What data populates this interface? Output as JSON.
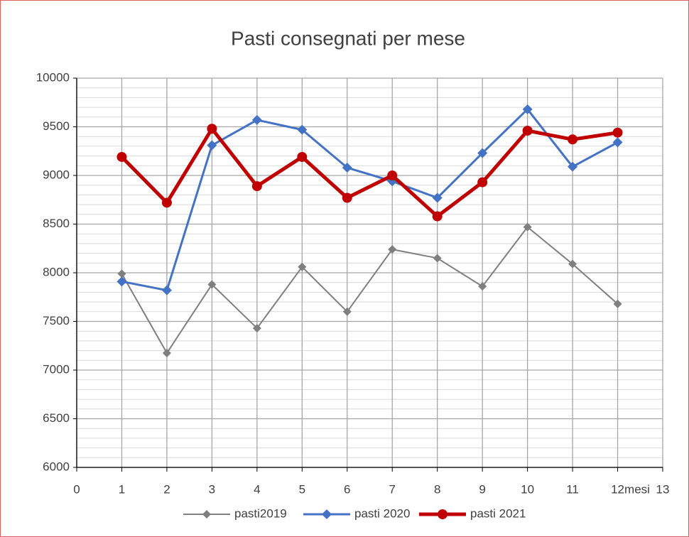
{
  "chart_data": {
    "type": "line",
    "title": "Pasti consegnati per mese",
    "x_label": "mesi",
    "x": [
      1,
      2,
      3,
      4,
      5,
      6,
      7,
      8,
      9,
      10,
      11,
      12
    ],
    "series": [
      {
        "name": "pasti2019",
        "color": "#7f7f7f",
        "values": [
          7990,
          7175,
          7880,
          7430,
          8060,
          7600,
          8240,
          8150,
          7860,
          8470,
          8090,
          7680
        ]
      },
      {
        "name": "pasti 2020",
        "color": "#4472c4",
        "values": [
          7910,
          7820,
          9310,
          9570,
          9470,
          9080,
          8940,
          8770,
          9230,
          9680,
          9090,
          9340
        ]
      },
      {
        "name": "pasti 2021",
        "color": "#c00000",
        "values": [
          9190,
          8720,
          9480,
          8890,
          9190,
          8770,
          9000,
          8580,
          8930,
          9460,
          9370,
          9440
        ]
      }
    ],
    "xlim": [
      0,
      13
    ],
    "xticks": [
      0,
      1,
      2,
      3,
      4,
      5,
      6,
      7,
      8,
      9,
      10,
      11,
      12,
      13
    ],
    "ylim": [
      6000,
      10000
    ],
    "yticks": [
      6000,
      6500,
      7000,
      7500,
      8000,
      8500,
      9000,
      9500,
      10000
    ],
    "yminor_step": 100,
    "grid": true,
    "legend": "bottom"
  }
}
